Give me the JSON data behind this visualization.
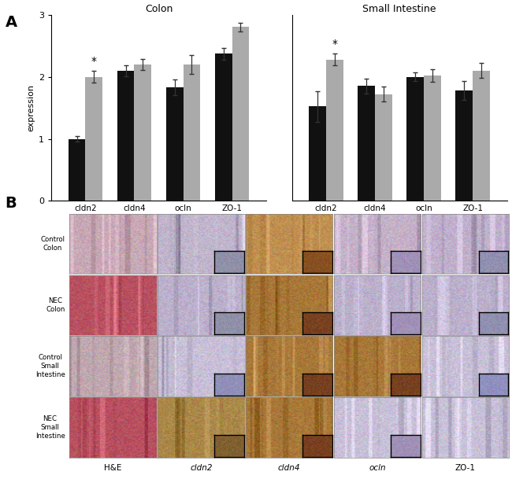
{
  "panel_A": {
    "colon": {
      "labels": [
        "cldn2",
        "cldn4",
        "ocln",
        "ZO-1"
      ],
      "black_bars": [
        1.0,
        2.1,
        1.83,
        2.37
      ],
      "gray_bars": [
        2.0,
        2.2,
        2.2,
        2.8
      ],
      "black_errors": [
        0.05,
        0.09,
        0.13,
        0.09
      ],
      "gray_errors": [
        0.1,
        0.09,
        0.15,
        0.07
      ],
      "asterisk_gray_pos": [
        0
      ],
      "title": "Colon"
    },
    "small_intestine": {
      "labels": [
        "cldn2",
        "cldn4",
        "ocln",
        "ZO-1"
      ],
      "black_bars": [
        1.52,
        1.85,
        2.0,
        1.78
      ],
      "gray_bars": [
        2.28,
        1.72,
        2.02,
        2.1
      ],
      "black_errors": [
        0.25,
        0.12,
        0.07,
        0.15
      ],
      "gray_errors": [
        0.1,
        0.12,
        0.1,
        0.12
      ],
      "asterisk_gray_pos": [
        0
      ],
      "title": "Small Intestine"
    },
    "ylabel": "expression",
    "ylim": [
      0,
      3
    ],
    "yticks": [
      0,
      1,
      2,
      3
    ],
    "bar_width": 0.35,
    "black_color": "#111111",
    "gray_color": "#aaaaaa",
    "panel_label": "A"
  },
  "panel_B": {
    "panel_label": "B",
    "row_labels": [
      "Control\nColon",
      "NEC\nColon",
      "Control\nSmall\nIntestine",
      "NEC\nSmall\nIntestine"
    ],
    "col_labels": [
      "H&E",
      "cldn2",
      "cldn4",
      "ocln",
      "ZO-1"
    ],
    "col_label_italic": [
      false,
      true,
      true,
      true,
      false
    ],
    "cell_bg": [
      [
        "#c8a8b5",
        "#c0b5cc",
        "#c09050",
        "#c4b0c8",
        "#c0b0cc"
      ],
      [
        "#b85060",
        "#bbb0cc",
        "#a87838",
        "#bbb0cc",
        "#bbb0cc"
      ],
      [
        "#c0a8b0",
        "#c8c0d8",
        "#a87838",
        "#a87838",
        "#c8c0d8"
      ],
      [
        "#b85060",
        "#aa8848",
        "#a87838",
        "#c8c0d8",
        "#c8c0d8"
      ]
    ],
    "inset_present": [
      [
        false,
        true,
        true,
        true,
        true
      ],
      [
        false,
        true,
        true,
        true,
        true
      ],
      [
        false,
        true,
        true,
        true,
        true
      ],
      [
        false,
        true,
        true,
        true,
        false
      ]
    ],
    "inset_bg": [
      [
        "",
        "#9090a8",
        "#885020",
        "#a090b8",
        "#9090b0"
      ],
      [
        "",
        "#9090a8",
        "#784020",
        "#a090b8",
        "#9090b0"
      ],
      [
        "",
        "#9090b8",
        "#784020",
        "#784020",
        "#9090c0"
      ],
      [
        "",
        "#806030",
        "#784020",
        "#a090b8",
        ""
      ]
    ]
  }
}
